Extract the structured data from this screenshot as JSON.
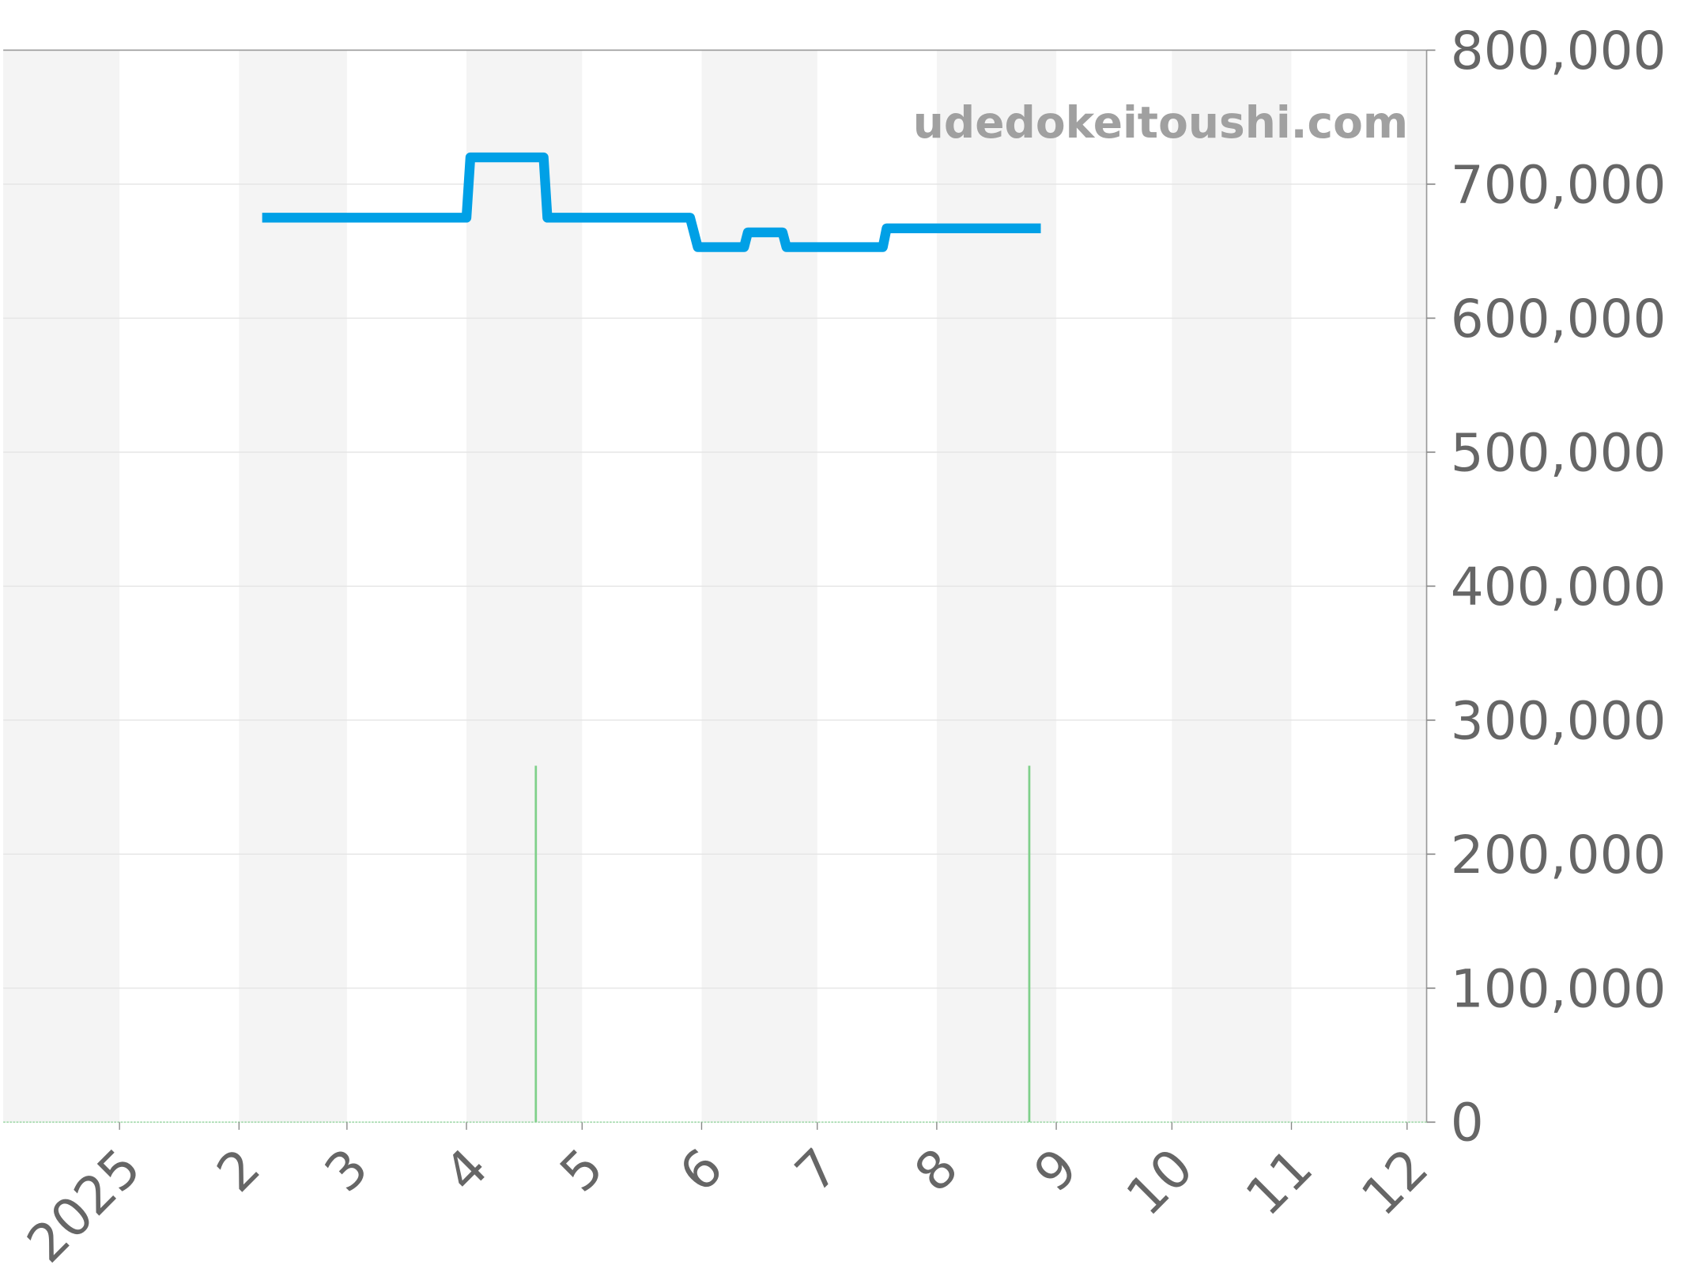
{
  "chart_data": {
    "type": "line",
    "title": "",
    "xlabel": "",
    "ylabel": "",
    "watermark": "udedokeitoushi.com",
    "ylim": [
      0,
      800000
    ],
    "y_ticks": [
      "0",
      "100,000",
      "200,000",
      "300,000",
      "400,000",
      "500,000",
      "600,000",
      "700,000",
      "800,000"
    ],
    "y_tick_values": [
      0,
      100000,
      200000,
      300000,
      400000,
      500000,
      600000,
      700000,
      800000
    ],
    "y_axis_side": "right",
    "xlim": [
      "2024-12-01",
      "2025-12-06"
    ],
    "x_ticks": [
      {
        "label": "2025",
        "date": "2025-01-01"
      },
      {
        "label": "2",
        "date": "2025-02-01"
      },
      {
        "label": "3",
        "date": "2025-03-01"
      },
      {
        "label": "4",
        "date": "2025-04-01"
      },
      {
        "label": "5",
        "date": "2025-05-01"
      },
      {
        "label": "6",
        "date": "2025-06-01"
      },
      {
        "label": "7",
        "date": "2025-07-01"
      },
      {
        "label": "8",
        "date": "2025-08-01"
      },
      {
        "label": "9",
        "date": "2025-09-01"
      },
      {
        "label": "10",
        "date": "2025-10-01"
      },
      {
        "label": "11",
        "date": "2025-11-01"
      },
      {
        "label": "12",
        "date": "2025-12-01"
      }
    ],
    "grid": true,
    "alternating_month_shading": true,
    "series": [
      {
        "type": "step-line",
        "color": "#00a0e6",
        "points": [
          {
            "x": "2025-02-07",
            "y": 675000
          },
          {
            "x": "2025-04-01",
            "y": 675000
          },
          {
            "x": "2025-04-02",
            "y": 720000
          },
          {
            "x": "2025-04-21",
            "y": 720000
          },
          {
            "x": "2025-04-22",
            "y": 675000
          },
          {
            "x": "2025-05-29",
            "y": 675000
          },
          {
            "x": "2025-05-31",
            "y": 653000
          },
          {
            "x": "2025-06-12",
            "y": 653000
          },
          {
            "x": "2025-06-13",
            "y": 664000
          },
          {
            "x": "2025-06-22",
            "y": 664000
          },
          {
            "x": "2025-06-23",
            "y": 653000
          },
          {
            "x": "2025-07-18",
            "y": 653000
          },
          {
            "x": "2025-07-19",
            "y": 667000
          },
          {
            "x": "2025-08-28",
            "y": 667000
          }
        ]
      },
      {
        "type": "bar",
        "color": "#7fd08a",
        "points": [
          {
            "x": "2025-04-19",
            "y": 266000
          },
          {
            "x": "2025-08-25",
            "y": 266000
          }
        ]
      }
    ]
  }
}
